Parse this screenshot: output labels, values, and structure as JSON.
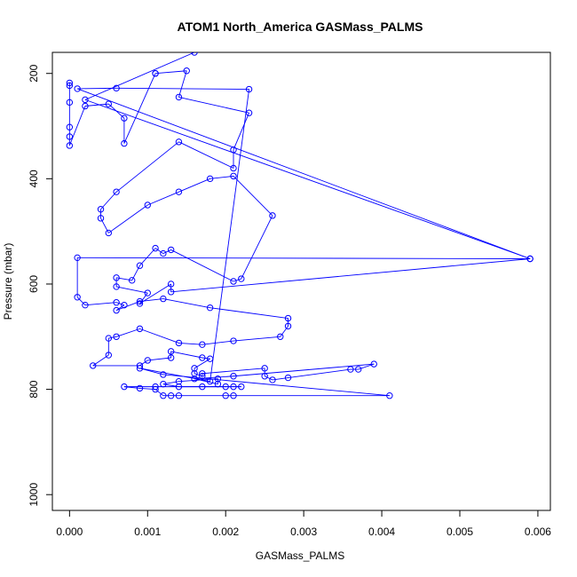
{
  "chart_data": {
    "type": "line",
    "title": "ATOM1 North_America GASMass_PALMS",
    "xlabel": "GASMass_PALMS",
    "ylabel": "Pressure (mbar)",
    "xlim": [
      -0.00022,
      0.00616
    ],
    "ylim": [
      1030,
      160
    ],
    "y_reversed": true,
    "x_ticks": [
      "0.000",
      "0.001",
      "0.002",
      "0.003",
      "0.004",
      "0.005",
      "0.006"
    ],
    "y_ticks": [
      "200",
      "400",
      "600",
      "800",
      "1000"
    ],
    "grid": false,
    "legend": "none",
    "series": [
      {
        "color": "#0000ff",
        "marker": "open-circle",
        "points": [
          [
            0.0,
            218
          ],
          [
            0.0,
            223
          ],
          [
            0.0,
            255
          ],
          [
            0.0,
            302
          ],
          [
            0.0,
            320
          ],
          [
            0.0,
            337
          ],
          [
            0.0002,
            262
          ],
          [
            0.0005,
            258
          ],
          [
            0.0007,
            285
          ],
          [
            0.0007,
            333
          ],
          [
            0.0011,
            200
          ],
          [
            0.0011,
            200
          ],
          [
            0.0015,
            195
          ],
          [
            0.0014,
            245
          ],
          [
            0.0023,
            275
          ],
          [
            0.0021,
            345
          ],
          [
            0.0021,
            380
          ],
          [
            0.0014,
            330
          ],
          [
            0.0006,
            425
          ],
          [
            0.0004,
            458
          ],
          [
            0.0004,
            475
          ],
          [
            0.0005,
            503
          ],
          [
            0.001,
            450
          ],
          [
            0.0014,
            425
          ],
          [
            0.0018,
            400
          ],
          [
            0.0021,
            395
          ],
          [
            0.0026,
            470
          ],
          [
            0.0022,
            590
          ],
          [
            0.0021,
            595
          ],
          [
            0.0013,
            535
          ],
          [
            0.0012,
            542
          ],
          [
            0.0011,
            532
          ],
          [
            0.0009,
            565
          ],
          [
            0.0008,
            593
          ],
          [
            0.0006,
            588
          ],
          [
            0.0006,
            605
          ],
          [
            0.001,
            617
          ],
          [
            0.0009,
            637
          ],
          [
            0.0013,
            600
          ],
          [
            0.0013,
            615
          ],
          [
            0.0059,
            552
          ],
          [
            0.0001,
            550
          ],
          [
            0.0001,
            625
          ],
          [
            0.0002,
            640
          ],
          [
            0.0006,
            635
          ],
          [
            0.0007,
            640
          ],
          [
            0.0006,
            650
          ],
          [
            0.0009,
            633
          ],
          [
            0.0012,
            628
          ],
          [
            0.0018,
            645
          ],
          [
            0.0028,
            665
          ],
          [
            0.0028,
            680
          ],
          [
            0.0027,
            700
          ],
          [
            0.0021,
            708
          ],
          [
            0.0017,
            715
          ],
          [
            0.0014,
            712
          ],
          [
            0.0009,
            685
          ],
          [
            0.0006,
            700
          ],
          [
            0.0005,
            703
          ],
          [
            0.0005,
            735
          ],
          [
            0.0003,
            755
          ],
          [
            0.0009,
            755
          ],
          [
            0.001,
            745
          ],
          [
            0.0013,
            740
          ],
          [
            0.0013,
            728
          ],
          [
            0.0017,
            740
          ],
          [
            0.0018,
            742
          ],
          [
            0.0016,
            760
          ],
          [
            0.0016,
            770
          ],
          [
            0.0017,
            775
          ],
          [
            0.0017,
            770
          ],
          [
            0.0025,
            760
          ],
          [
            0.0025,
            775
          ],
          [
            0.0026,
            782
          ],
          [
            0.0028,
            778
          ],
          [
            0.0036,
            762
          ],
          [
            0.0037,
            762
          ],
          [
            0.0039,
            752
          ],
          [
            0.0021,
            775
          ],
          [
            0.0016,
            780
          ],
          [
            0.0019,
            790
          ],
          [
            0.0019,
            780
          ],
          [
            0.0014,
            785
          ],
          [
            0.0012,
            790
          ],
          [
            0.0014,
            795
          ],
          [
            0.0017,
            795
          ],
          [
            0.002,
            795
          ],
          [
            0.0021,
            795
          ],
          [
            0.0022,
            795
          ],
          [
            0.0011,
            795
          ],
          [
            0.0007,
            795
          ],
          [
            0.0009,
            798
          ],
          [
            0.0011,
            800
          ],
          [
            0.0012,
            812
          ],
          [
            0.0013,
            812
          ],
          [
            0.0014,
            812
          ],
          [
            0.002,
            812
          ],
          [
            0.0021,
            812
          ],
          [
            0.0041,
            812
          ],
          [
            0.0012,
            772
          ],
          [
            0.0009,
            760
          ],
          [
            0.0018,
            785
          ],
          [
            0.0023,
            230
          ],
          [
            0.0006,
            228
          ],
          [
            0.0001,
            229
          ],
          [
            0.0059,
            552
          ],
          [
            0.0002,
            250
          ],
          [
            0.0016,
            160
          ]
        ]
      }
    ]
  }
}
